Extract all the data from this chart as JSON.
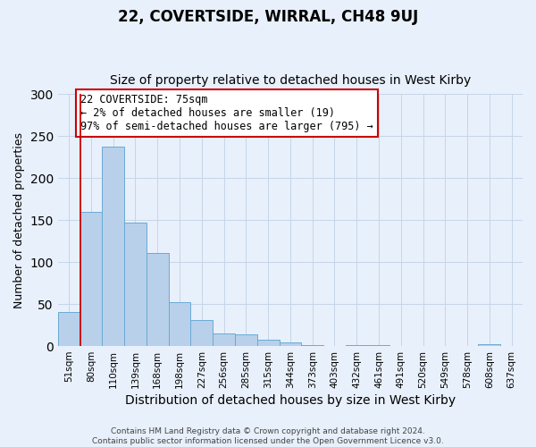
{
  "title": "22, COVERTSIDE, WIRRAL, CH48 9UJ",
  "subtitle": "Size of property relative to detached houses in West Kirby",
  "xlabel": "Distribution of detached houses by size in West Kirby",
  "ylabel": "Number of detached properties",
  "categories": [
    "51sqm",
    "80sqm",
    "110sqm",
    "139sqm",
    "168sqm",
    "198sqm",
    "227sqm",
    "256sqm",
    "285sqm",
    "315sqm",
    "344sqm",
    "373sqm",
    "403sqm",
    "432sqm",
    "461sqm",
    "491sqm",
    "520sqm",
    "549sqm",
    "578sqm",
    "608sqm",
    "637sqm"
  ],
  "values": [
    40,
    160,
    237,
    147,
    111,
    52,
    31,
    15,
    14,
    8,
    4,
    1,
    0,
    1,
    1,
    0,
    0,
    0,
    0,
    2,
    0
  ],
  "bar_color": "#b8d0ea",
  "bar_edge_color": "#6aaad4",
  "background_color": "#e8f0fb",
  "grid_color": "#c5d5e8",
  "marker_line_color": "#cc0000",
  "annotation_text": "22 COVERTSIDE: 75sqm\n← 2% of detached houses are smaller (19)\n97% of semi-detached houses are larger (795) →",
  "annotation_box_color": "#ffffff",
  "annotation_box_edge_color": "#cc0000",
  "ylim": [
    0,
    300
  ],
  "yticks": [
    0,
    50,
    100,
    150,
    200,
    250,
    300
  ],
  "footer_text": "Contains HM Land Registry data © Crown copyright and database right 2024.\nContains public sector information licensed under the Open Government Licence v3.0.",
  "title_fontsize": 12,
  "subtitle_fontsize": 10,
  "xlabel_fontsize": 10,
  "ylabel_fontsize": 9,
  "tick_fontsize": 7.5,
  "annotation_fontsize": 8.5,
  "footer_fontsize": 6.5
}
